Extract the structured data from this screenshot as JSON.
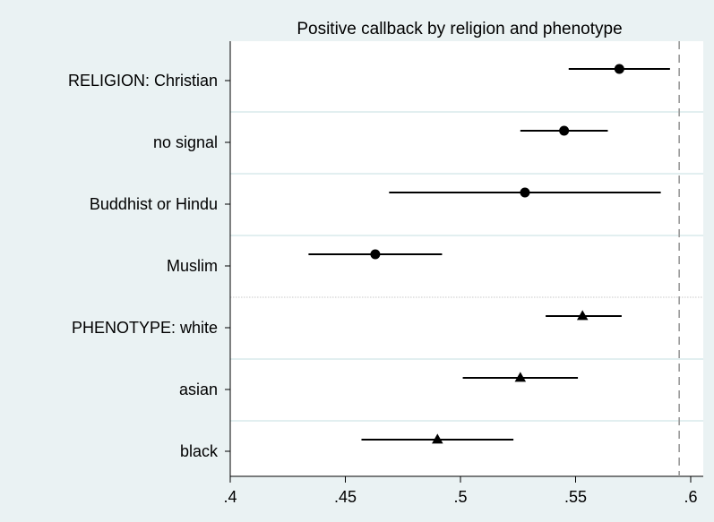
{
  "chart_data": {
    "type": "scatter",
    "title": "Positive callback by religion and phenotype",
    "xlabel": "",
    "ylabel": "",
    "xlim": [
      0.4,
      0.605
    ],
    "x_ticks": [
      0.4,
      0.45,
      0.5,
      0.55,
      0.6
    ],
    "x_tick_labels": [
      ".4",
      ".45",
      ".5",
      ".55",
      ".6"
    ],
    "reference_line": {
      "x": 0.595,
      "style": "dashed"
    },
    "grid": true,
    "legend": "none",
    "series": [
      {
        "marker": "circle",
        "points": [
          {
            "label": "RELIGION: Christian",
            "estimate": 0.569,
            "ci_low": 0.547,
            "ci_high": 0.591
          },
          {
            "label": "no signal",
            "estimate": 0.545,
            "ci_low": 0.526,
            "ci_high": 0.564
          },
          {
            "label": "Buddhist or Hindu",
            "estimate": 0.528,
            "ci_low": 0.469,
            "ci_high": 0.587
          },
          {
            "label": "Muslim",
            "estimate": 0.463,
            "ci_low": 0.434,
            "ci_high": 0.492
          }
        ]
      },
      {
        "marker": "triangle",
        "points": [
          {
            "label": "PHENOTYPE: white",
            "estimate": 0.553,
            "ci_low": 0.537,
            "ci_high": 0.57
          },
          {
            "label": "asian",
            "estimate": 0.526,
            "ci_low": 0.501,
            "ci_high": 0.551
          },
          {
            "label": "black",
            "estimate": 0.49,
            "ci_low": 0.457,
            "ci_high": 0.523
          }
        ]
      }
    ]
  },
  "colors": {
    "background": "#eaf2f3",
    "plot_background": "#ffffff",
    "grid": "#e2eff0",
    "marker": "#000000",
    "reference_line": "#9a9a9a",
    "separator": "#c8c8c8"
  }
}
